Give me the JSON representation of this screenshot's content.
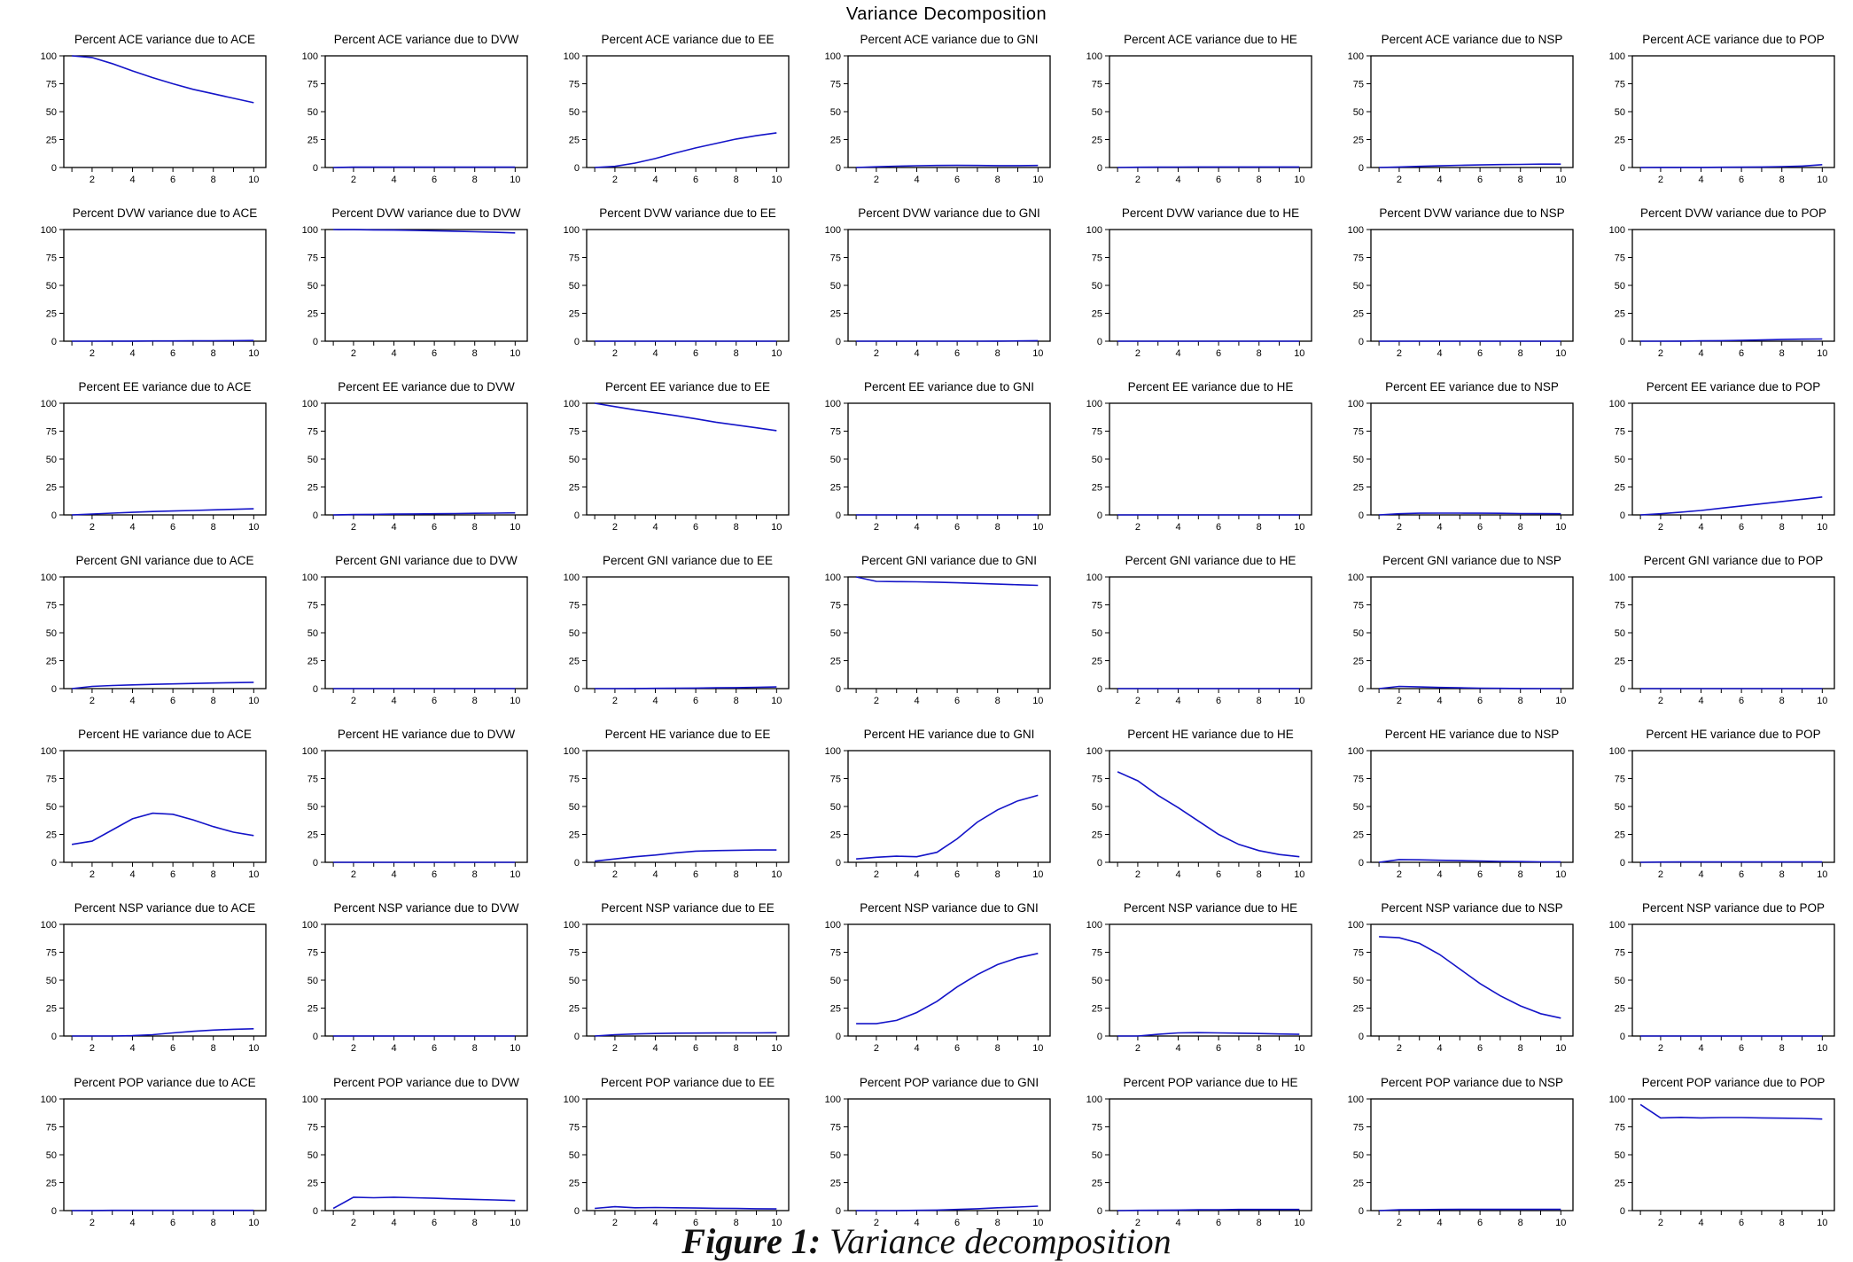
{
  "title": "Variance Decomposition",
  "caption": {
    "label": "Figure 1:",
    "text": "Variance decomposition"
  },
  "colors": {
    "line": "#1414c8",
    "axis": "#000000",
    "background": "#ffffff"
  },
  "chart_data": {
    "type": "line",
    "x": [
      1,
      2,
      3,
      4,
      5,
      6,
      7,
      8,
      9,
      10
    ],
    "xticks": [
      "2",
      "4",
      "6",
      "8",
      "10"
    ],
    "ylim": [
      0,
      100
    ],
    "yticks": [
      "0",
      "25",
      "50",
      "75",
      "100"
    ],
    "variables": [
      "ACE",
      "DVW",
      "EE",
      "GNI",
      "HE",
      "NSP",
      "POP"
    ],
    "panels": [
      [
        {
          "title": "Percent ACE variance due to ACE",
          "values": [
            100,
            98.5,
            93,
            86.5,
            80.5,
            75,
            70,
            66,
            62,
            58
          ]
        },
        {
          "title": "Percent ACE variance due to DVW",
          "values": [
            0,
            0.3,
            0.3,
            0.3,
            0.3,
            0.3,
            0.3,
            0.3,
            0.3,
            0.3
          ]
        },
        {
          "title": "Percent ACE variance due to EE",
          "values": [
            0,
            1,
            4,
            8,
            13,
            17.5,
            21.5,
            25.5,
            28.5,
            31
          ]
        },
        {
          "title": "Percent ACE variance due to GNI",
          "values": [
            0,
            0.6,
            1.2,
            1.6,
            1.8,
            1.9,
            1.8,
            1.7,
            1.7,
            1.8
          ]
        },
        {
          "title": "Percent ACE variance due to HE",
          "values": [
            0,
            0.2,
            0.3,
            0.4,
            0.5,
            0.5,
            0.5,
            0.5,
            0.5,
            0.5
          ]
        },
        {
          "title": "Percent ACE variance due to NSP",
          "values": [
            0,
            0.5,
            1,
            1.5,
            2,
            2.3,
            2.6,
            2.8,
            3,
            3
          ]
        },
        {
          "title": "Percent ACE variance due to POP",
          "values": [
            0,
            0.1,
            0.1,
            0.1,
            0.2,
            0.3,
            0.5,
            0.8,
            1.3,
            2.5
          ]
        }
      ],
      [
        {
          "title": "Percent DVW variance due to ACE",
          "values": [
            0,
            0,
            0.1,
            0.1,
            0.2,
            0.2,
            0.3,
            0.4,
            0.5,
            0.6
          ]
        },
        {
          "title": "Percent DVW variance due to DVW",
          "values": [
            100,
            99.9,
            99.7,
            99.5,
            99.2,
            98.9,
            98.5,
            98,
            97.5,
            97
          ]
        },
        {
          "title": "Percent DVW variance due to EE",
          "values": [
            0,
            0,
            0,
            0,
            0,
            0,
            0,
            0,
            0,
            0
          ]
        },
        {
          "title": "Percent DVW variance due to GNI",
          "values": [
            0,
            0,
            0,
            0,
            0,
            0,
            0,
            0.1,
            0.2,
            0.5
          ]
        },
        {
          "title": "Percent DVW variance due to HE",
          "values": [
            0,
            0,
            0,
            0,
            0,
            0,
            0,
            0,
            0,
            0
          ]
        },
        {
          "title": "Percent DVW variance due to NSP",
          "values": [
            0,
            0,
            0,
            0,
            0,
            0,
            0,
            0,
            0,
            0
          ]
        },
        {
          "title": "Percent DVW variance due to POP",
          "values": [
            0,
            0,
            0.1,
            0.3,
            0.5,
            0.8,
            1.1,
            1.5,
            1.8,
            2
          ]
        }
      ],
      [
        {
          "title": "Percent EE variance due to ACE",
          "values": [
            0,
            0.8,
            1.6,
            2.3,
            3,
            3.5,
            4,
            4.5,
            5,
            5.5
          ]
        },
        {
          "title": "Percent EE variance due to DVW",
          "values": [
            0,
            0.3,
            0.5,
            0.7,
            0.9,
            1,
            1.2,
            1.4,
            1.6,
            1.8
          ]
        },
        {
          "title": "Percent EE variance due to EE",
          "values": [
            100,
            97,
            94,
            91.5,
            89,
            86,
            83,
            80.5,
            78,
            75.5
          ]
        },
        {
          "title": "Percent EE variance due to GNI",
          "values": [
            0,
            0,
            0,
            0,
            0,
            0,
            0,
            0,
            0,
            0
          ]
        },
        {
          "title": "Percent EE variance due to HE",
          "values": [
            0,
            0,
            0,
            0,
            0,
            0,
            0,
            0,
            0,
            0
          ]
        },
        {
          "title": "Percent EE variance due to NSP",
          "values": [
            0,
            1,
            1.5,
            1.6,
            1.6,
            1.5,
            1.4,
            1.2,
            1.1,
            1
          ]
        },
        {
          "title": "Percent EE variance due to POP",
          "values": [
            0,
            1,
            2.5,
            4,
            6,
            8,
            10,
            12,
            14,
            16
          ]
        }
      ],
      [
        {
          "title": "Percent GNI variance due to ACE",
          "values": [
            0,
            2,
            2.8,
            3.3,
            3.8,
            4.2,
            4.6,
            5,
            5.3,
            5.6
          ]
        },
        {
          "title": "Percent GNI variance due to DVW",
          "values": [
            0,
            0,
            0,
            0,
            0,
            0,
            0,
            0,
            0,
            0
          ]
        },
        {
          "title": "Percent GNI variance due to EE",
          "values": [
            0,
            0,
            0.1,
            0.2,
            0.3,
            0.5,
            0.7,
            0.9,
            1.2,
            1.5
          ]
        },
        {
          "title": "Percent GNI variance due to GNI",
          "values": [
            100,
            96,
            95.8,
            95.6,
            95.3,
            94.8,
            94.2,
            93.6,
            93,
            92.5
          ]
        },
        {
          "title": "Percent GNI variance due to HE",
          "values": [
            0,
            0,
            0,
            0,
            0,
            0,
            0,
            0,
            0,
            0
          ]
        },
        {
          "title": "Percent GNI variance due to NSP",
          "values": [
            0,
            2,
            1.5,
            1,
            0.7,
            0.4,
            0.2,
            0.1,
            0,
            0
          ]
        },
        {
          "title": "Percent GNI variance due to POP",
          "values": [
            0,
            0,
            0,
            0,
            0,
            0,
            0,
            0,
            0,
            0
          ]
        }
      ],
      [
        {
          "title": "Percent HE variance due to ACE",
          "values": [
            16,
            19,
            29,
            39,
            44,
            43,
            38,
            32,
            27,
            24
          ]
        },
        {
          "title": "Percent HE variance due to DVW",
          "values": [
            0,
            0,
            0,
            0,
            0,
            0,
            0,
            0,
            0,
            0
          ]
        },
        {
          "title": "Percent HE variance due to EE",
          "values": [
            1,
            3,
            5,
            6.5,
            8.5,
            10,
            10.5,
            10.8,
            11,
            11
          ]
        },
        {
          "title": "Percent HE variance due to GNI",
          "values": [
            3,
            4.5,
            5.5,
            5,
            9,
            21,
            36,
            47,
            55,
            60
          ]
        },
        {
          "title": "Percent HE variance due to HE",
          "values": [
            81,
            73,
            60,
            49,
            37,
            25,
            16,
            10.5,
            7,
            5
          ]
        },
        {
          "title": "Percent HE variance due to NSP",
          "values": [
            0,
            2.5,
            2.2,
            1.8,
            1.5,
            1.2,
            0.8,
            0.6,
            0.4,
            0.3
          ]
        },
        {
          "title": "Percent HE variance due to POP",
          "values": [
            0,
            0.2,
            0.3,
            0.3,
            0.3,
            0.3,
            0.3,
            0.3,
            0.3,
            0.3
          ]
        }
      ],
      [
        {
          "title": "Percent NSP variance due to ACE",
          "values": [
            0,
            0,
            0,
            0.3,
            1.2,
            2.8,
            4.2,
            5.3,
            6,
            6.5
          ]
        },
        {
          "title": "Percent NSP variance due to DVW",
          "values": [
            0,
            0,
            0,
            0,
            0,
            0,
            0,
            0,
            0,
            0
          ]
        },
        {
          "title": "Percent NSP variance due to EE",
          "values": [
            0,
            1.2,
            1.8,
            2.2,
            2.5,
            2.6,
            2.7,
            2.8,
            2.8,
            2.9
          ]
        },
        {
          "title": "Percent NSP variance due to GNI",
          "values": [
            11,
            11,
            14,
            21,
            31,
            44,
            55,
            64,
            70,
            74
          ]
        },
        {
          "title": "Percent NSP variance due to HE",
          "values": [
            0,
            0,
            1.5,
            2.8,
            3,
            2.8,
            2.5,
            2.2,
            1.8,
            1.5
          ]
        },
        {
          "title": "Percent NSP variance due to NSP",
          "values": [
            89,
            88,
            83,
            73,
            60,
            47,
            36,
            27,
            20,
            16
          ]
        },
        {
          "title": "Percent NSP variance due to POP",
          "values": [
            0,
            0,
            0,
            0,
            0,
            0,
            0,
            0,
            0,
            0
          ]
        }
      ],
      [
        {
          "title": "Percent POP variance due to ACE",
          "values": [
            0,
            0.1,
            0.2,
            0.2,
            0.2,
            0.2,
            0.2,
            0.2,
            0.2,
            0.2
          ]
        },
        {
          "title": "Percent POP variance due to DVW",
          "values": [
            2,
            12,
            11.5,
            12,
            11.5,
            11,
            10.5,
            10,
            9.5,
            9
          ]
        },
        {
          "title": "Percent POP variance due to EE",
          "values": [
            2,
            3.5,
            2.5,
            2.8,
            2.5,
            2.3,
            2.1,
            1.9,
            1.7,
            1.5
          ]
        },
        {
          "title": "Percent POP variance due to GNI",
          "values": [
            0,
            0,
            0,
            0.2,
            0.5,
            1,
            1.7,
            2.5,
            3.2,
            4
          ]
        },
        {
          "title": "Percent POP variance due to HE",
          "values": [
            0,
            0.2,
            0.3,
            0.5,
            0.7,
            0.8,
            1,
            1,
            1,
            1
          ]
        },
        {
          "title": "Percent POP variance due to NSP",
          "values": [
            0,
            0.7,
            0.9,
            1,
            1.1,
            1.1,
            1.1,
            1.1,
            1.1,
            1.1
          ]
        },
        {
          "title": "Percent POP variance due to POP",
          "values": [
            95,
            83,
            83.5,
            83,
            83.3,
            83.3,
            83,
            82.8,
            82.5,
            82
          ]
        }
      ]
    ]
  }
}
